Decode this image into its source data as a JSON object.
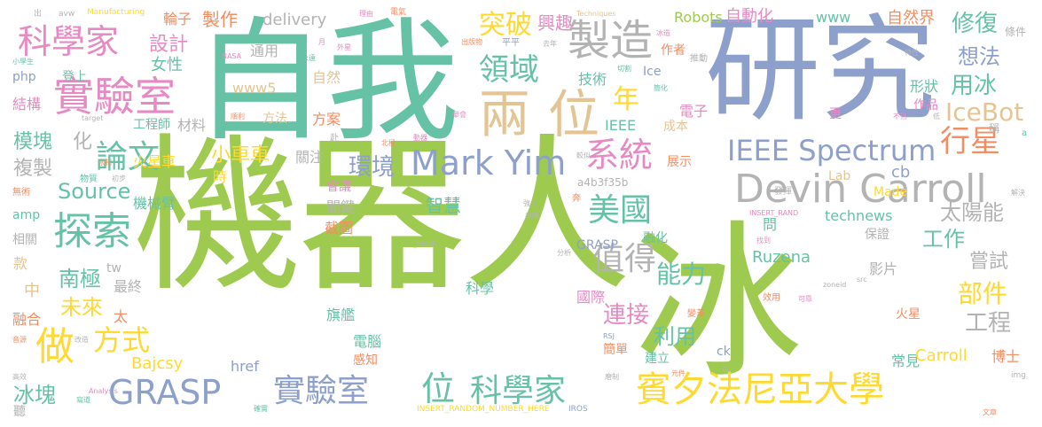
{
  "palette": {
    "green": "#9ecb4f",
    "teal": "#66c2a5",
    "orange": "#f38d62",
    "blue": "#8da0cb",
    "pink": "#e78ac3",
    "yellow": "#ffd92f",
    "tan": "#e5c494",
    "gray": "#b3b3b3"
  },
  "words": [
    {
      "text": "機器人",
      "c": "green"
    },
    {
      "text": "冰",
      "c": "green"
    },
    {
      "text": "自我",
      "c": "teal"
    },
    {
      "text": "研究",
      "c": "blue"
    },
    {
      "text": "Devin Carroll",
      "c": "gray"
    },
    {
      "text": "Mark Yim",
      "c": "blue"
    },
    {
      "text": "製造",
      "c": "gray"
    },
    {
      "text": "兩",
      "c": "tan"
    },
    {
      "text": "位",
      "c": "tan"
    },
    {
      "text": "年",
      "c": "yellow"
    },
    {
      "text": "領域",
      "c": "teal"
    },
    {
      "text": "實驗室",
      "c": "pink"
    },
    {
      "text": "科學家",
      "c": "pink"
    },
    {
      "text": "探索",
      "c": "teal"
    },
    {
      "text": "論文",
      "c": "teal"
    },
    {
      "text": "做",
      "c": "yellow"
    },
    {
      "text": "方式",
      "c": "yellow"
    },
    {
      "text": "GRASP",
      "c": "blue"
    },
    {
      "text": "實驗室",
      "c": "blue"
    },
    {
      "text": "位",
      "c": "teal"
    },
    {
      "text": "科學家",
      "c": "teal"
    },
    {
      "text": "賓夕法尼亞大學",
      "c": "yellow"
    },
    {
      "text": "系統",
      "c": "pink"
    },
    {
      "text": "IEEE Spectrum",
      "c": "blue"
    },
    {
      "text": "行星",
      "c": "orange"
    },
    {
      "text": "突破",
      "c": "yellow"
    },
    {
      "text": "修復",
      "c": "teal"
    },
    {
      "text": "想法",
      "c": "blue"
    },
    {
      "text": "IceBot",
      "c": "tan"
    },
    {
      "text": "用冰",
      "c": "teal"
    },
    {
      "text": "美國",
      "c": "teal"
    },
    {
      "text": "值得",
      "c": "gray"
    },
    {
      "text": "能力",
      "c": "teal"
    },
    {
      "text": "部件",
      "c": "yellow"
    },
    {
      "text": "工程",
      "c": "gray"
    },
    {
      "text": "工作",
      "c": "teal"
    },
    {
      "text": "太陽能",
      "c": "gray"
    },
    {
      "text": "嘗試",
      "c": "gray"
    },
    {
      "text": "連接",
      "c": "pink"
    },
    {
      "text": "利用",
      "c": "teal"
    },
    {
      "text": "未來",
      "c": "yellow"
    },
    {
      "text": "南極",
      "c": "teal"
    },
    {
      "text": "冰塊",
      "c": "teal"
    },
    {
      "text": "Source",
      "c": "teal"
    },
    {
      "text": "模塊",
      "c": "teal"
    },
    {
      "text": "化",
      "c": "gray"
    },
    {
      "text": "複製",
      "c": "gray"
    },
    {
      "text": "設計",
      "c": "pink"
    },
    {
      "text": "女性",
      "c": "teal"
    },
    {
      "text": "結構",
      "c": "pink"
    },
    {
      "text": "工程師",
      "c": "teal"
    },
    {
      "text": "材料",
      "c": "gray"
    },
    {
      "text": "小車車",
      "c": "yellow"
    },
    {
      "text": "環境",
      "c": "blue"
    },
    {
      "text": "智慧",
      "c": "teal"
    },
    {
      "text": "Robots",
      "c": "green"
    },
    {
      "text": "自動化",
      "c": "pink"
    },
    {
      "text": "www",
      "c": "teal"
    },
    {
      "text": "自然界",
      "c": "orange"
    },
    {
      "text": "興趣",
      "c": "pink"
    },
    {
      "text": "製作",
      "c": "orange"
    },
    {
      "text": "delivery",
      "c": "gray"
    },
    {
      "text": "輪子",
      "c": "orange"
    },
    {
      "text": "通用",
      "c": "gray"
    },
    {
      "text": "www5",
      "c": "tan"
    },
    {
      "text": "自然",
      "c": "tan"
    },
    {
      "text": "方法",
      "c": "tan"
    },
    {
      "text": "技術",
      "c": "teal"
    },
    {
      "text": "Ice",
      "c": "blue"
    },
    {
      "text": "作者",
      "c": "orange"
    },
    {
      "text": "形狀",
      "c": "teal"
    },
    {
      "text": "作品",
      "c": "pink"
    },
    {
      "text": "電子",
      "c": "pink"
    },
    {
      "text": "成本",
      "c": "tan"
    },
    {
      "text": "IEEE",
      "c": "teal"
    },
    {
      "text": "方案",
      "c": "orange"
    },
    {
      "text": "展示",
      "c": "orange"
    },
    {
      "text": "火星車",
      "c": "yellow"
    },
    {
      "text": "時",
      "c": "yellow"
    },
    {
      "text": "機械臂",
      "c": "teal"
    },
    {
      "text": "關注",
      "c": "gray"
    },
    {
      "text": "關鍵",
      "c": "gray"
    },
    {
      "text": "截圖",
      "c": "orange"
    },
    {
      "text": "會議",
      "c": "pink"
    },
    {
      "text": "GRASP",
      "c": "blue"
    },
    {
      "text": "融化",
      "c": "teal"
    },
    {
      "text": "technews",
      "c": "teal"
    },
    {
      "text": "cb",
      "c": "blue"
    },
    {
      "text": "Made",
      "c": "yellow"
    },
    {
      "text": "Lab",
      "c": "tan"
    },
    {
      "text": "Ruzena",
      "c": "teal"
    },
    {
      "text": "影片",
      "c": "gray"
    },
    {
      "text": "保證",
      "c": "gray"
    },
    {
      "text": "問",
      "c": "teal"
    },
    {
      "text": "款",
      "c": "tan"
    },
    {
      "text": "中",
      "c": "tan"
    },
    {
      "text": "最終",
      "c": "gray"
    },
    {
      "text": "tw",
      "c": "gray"
    },
    {
      "text": "融合",
      "c": "orange"
    },
    {
      "text": "太",
      "c": "orange"
    },
    {
      "text": "科學",
      "c": "teal"
    },
    {
      "text": "國際",
      "c": "pink"
    },
    {
      "text": "旗艦",
      "c": "teal"
    },
    {
      "text": "電腦",
      "c": "teal"
    },
    {
      "text": "感知",
      "c": "orange"
    },
    {
      "text": "Bajcsy",
      "c": "yellow"
    },
    {
      "text": "href",
      "c": "blue"
    },
    {
      "text": "簡單",
      "c": "orange"
    },
    {
      "text": "建立",
      "c": "teal"
    },
    {
      "text": "常見",
      "c": "teal"
    },
    {
      "text": "Carroll",
      "c": "yellow"
    },
    {
      "text": "博士",
      "c": "orange"
    },
    {
      "text": "火星",
      "c": "orange"
    },
    {
      "text": "聽",
      "c": "gray"
    },
    {
      "text": "ck",
      "c": "blue"
    },
    {
      "text": "n",
      "c": "gray"
    },
    {
      "text": "amp",
      "c": "teal"
    },
    {
      "text": "相關",
      "c": "gray"
    },
    {
      "text": "php",
      "c": "blue"
    },
    {
      "text": "登上",
      "c": "teal"
    },
    {
      "text": "a4b3f35b",
      "c": "gray"
    },
    {
      "text": "更",
      "c": "pink"
    },
    {
      "text": "稱",
      "c": "gray"
    },
    {
      "text": "Manufacturing",
      "c": "yellow"
    },
    {
      "text": "avw",
      "c": "gray"
    },
    {
      "text": "出",
      "c": "gray"
    },
    {
      "text": "理由",
      "c": "pink"
    },
    {
      "text": "電氣",
      "c": "orange"
    },
    {
      "text": "Techniques",
      "c": "tan"
    },
    {
      "text": "條件",
      "c": "gray"
    },
    {
      "text": "平平",
      "c": "blue"
    },
    {
      "text": "出版物",
      "c": "orange"
    },
    {
      "text": "NASA",
      "c": "pink"
    },
    {
      "text": "外星",
      "c": "pink"
    },
    {
      "text": "永遠",
      "c": "teal"
    },
    {
      "text": "推動",
      "c": "gray"
    },
    {
      "text": "小學生",
      "c": "teal"
    },
    {
      "text": "target",
      "c": "gray"
    },
    {
      "text": "順利",
      "c": "orange"
    },
    {
      "text": "動器",
      "c": "pink"
    },
    {
      "text": "北極",
      "c": "orange"
    },
    {
      "text": "冰制",
      "c": "orange"
    },
    {
      "text": "無術",
      "c": "orange"
    },
    {
      "text": "物質",
      "c": "teal"
    },
    {
      "text": "初步",
      "c": "gray"
    },
    {
      "text": "赴",
      "c": "gray"
    },
    {
      "text": "_blank",
      "c": "gray"
    },
    {
      "text": "INSERT_RAND",
      "c": "pink"
    },
    {
      "text": "解決",
      "c": "gray"
    },
    {
      "text": "INSERT_RANDOM_NUMBER_HERE",
      "c": "yellow"
    },
    {
      "text": "IROS",
      "c": "blue"
    },
    {
      "text": "zoneid",
      "c": "gray"
    },
    {
      "text": "src",
      "c": "gray"
    },
    {
      "text": "img",
      "c": "gray"
    },
    {
      "text": "RSJ",
      "c": "blue"
    },
    {
      "text": "Analysis",
      "c": "pink"
    },
    {
      "text": "音源",
      "c": "orange"
    },
    {
      "text": "改造",
      "c": "gray"
    },
    {
      "text": "高效",
      "c": "gray"
    },
    {
      "text": "寫道",
      "c": "teal"
    },
    {
      "text": "磨制",
      "c": "gray"
    },
    {
      "text": "文章",
      "c": "orange"
    },
    {
      "text": "確實",
      "c": "teal"
    },
    {
      "text": "變革",
      "c": "orange"
    },
    {
      "text": "效用",
      "c": "orange"
    },
    {
      "text": "可靠",
      "c": "pink"
    },
    {
      "text": "發揮",
      "c": "gray"
    },
    {
      "text": "分析",
      "c": "gray"
    },
    {
      "text": "找到",
      "c": "pink"
    },
    {
      "text": "強大",
      "c": "gray"
    },
    {
      "text": "故障",
      "c": "gray"
    },
    {
      "text": "奔",
      "c": "orange"
    },
    {
      "text": "a",
      "c": "teal"
    },
    {
      "text": "不熟",
      "c": "pink"
    },
    {
      "text": "特性",
      "c": "gray"
    },
    {
      "text": "低",
      "c": "gray"
    },
    {
      "text": "月",
      "c": "pink"
    },
    {
      "text": "去年",
      "c": "gray"
    },
    {
      "text": "切割",
      "c": "teal"
    },
    {
      "text": "簡化",
      "c": "teal"
    },
    {
      "text": "元件",
      "c": "orange"
    },
    {
      "text": "冰造",
      "c": "pink"
    },
    {
      "text": "舉會",
      "c": "pink"
    },
    {
      "text": "較似",
      "c": "gray"
    }
  ]
}
